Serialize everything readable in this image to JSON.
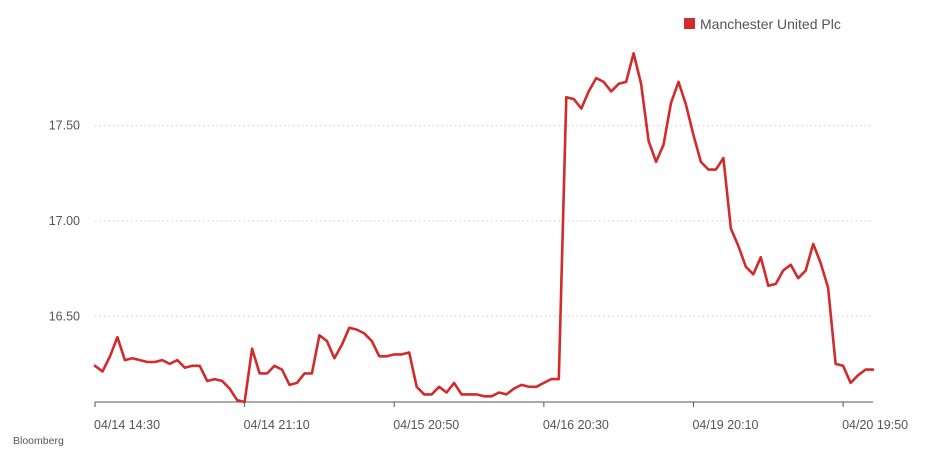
{
  "source": "Bloomberg",
  "colors": {
    "series": "#d12b2b",
    "grid": "#cccccc",
    "axis": "#555555"
  },
  "chart_data": {
    "type": "line",
    "title": "",
    "xlabel": "",
    "ylabel": "",
    "legend_position": "top-right",
    "grid": {
      "horizontal": "dotted",
      "vertical": false
    },
    "ylim": [
      16.05,
      17.95
    ],
    "yticks": [
      {
        "value": 16.5,
        "label": "16.50"
      },
      {
        "value": 17.0,
        "label": "17.00"
      },
      {
        "value": 17.5,
        "label": "17.50"
      }
    ],
    "xticks": [
      {
        "index": 0,
        "label": "04/14 14:30"
      },
      {
        "index": 20,
        "label": "04/14 21:10"
      },
      {
        "index": 40,
        "label": "04/15 20:50"
      },
      {
        "index": 60,
        "label": "04/16 20:30"
      },
      {
        "index": 80,
        "label": "04/19 20:10"
      },
      {
        "index": 100,
        "label": "04/20 19:50"
      }
    ],
    "series": [
      {
        "name": "Manchester United Plc",
        "color": "#d12b2b",
        "values": [
          16.24,
          16.21,
          16.29,
          16.39,
          16.27,
          16.28,
          16.27,
          16.26,
          16.26,
          16.27,
          16.25,
          16.27,
          16.23,
          16.24,
          16.24,
          16.16,
          16.17,
          16.16,
          16.12,
          16.06,
          16.05,
          16.33,
          16.2,
          16.2,
          16.24,
          16.22,
          16.14,
          16.15,
          16.2,
          16.2,
          16.4,
          16.37,
          16.28,
          16.35,
          16.44,
          16.43,
          16.41,
          16.37,
          16.29,
          16.29,
          16.3,
          16.3,
          16.31,
          16.13,
          16.09,
          16.09,
          16.13,
          16.1,
          16.15,
          16.09,
          16.09,
          16.09,
          16.08,
          16.08,
          16.1,
          16.09,
          16.12,
          16.14,
          16.13,
          16.13,
          16.15,
          16.17,
          16.17,
          17.65,
          17.64,
          17.59,
          17.68,
          17.75,
          17.73,
          17.68,
          17.72,
          17.73,
          17.88,
          17.72,
          17.42,
          17.31,
          17.4,
          17.62,
          17.73,
          17.61,
          17.45,
          17.31,
          17.27,
          17.27,
          17.33,
          16.96,
          16.87,
          16.76,
          16.72,
          16.81,
          16.66,
          16.67,
          16.74,
          16.77,
          16.7,
          16.74,
          16.88,
          16.78,
          16.65,
          16.25,
          16.24,
          16.15,
          16.19,
          16.22,
          16.22
        ]
      }
    ]
  }
}
